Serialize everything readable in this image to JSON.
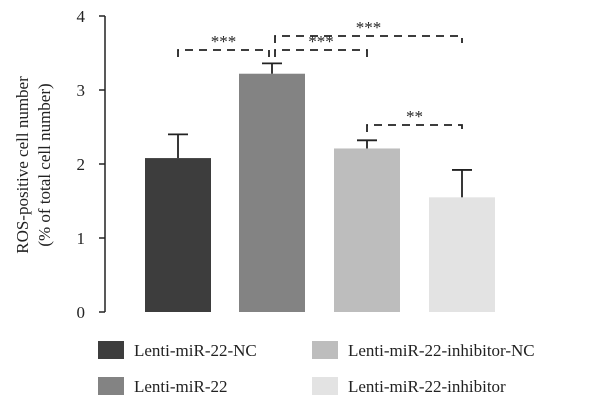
{
  "chart_data": {
    "type": "bar",
    "categories": [
      "Lenti-miR-22-NC",
      "Lenti-miR-22",
      "Lenti-miR-22-inhibitor-NC",
      "Lenti-miR-22-inhibitor"
    ],
    "values": [
      2.08,
      3.22,
      2.21,
      1.55
    ],
    "errors": [
      0.32,
      0.14,
      0.11,
      0.37
    ],
    "colors": [
      "#3d3d3d",
      "#838383",
      "#bdbdbd",
      "#e3e3e3"
    ],
    "ylabel_line1": "ROS-positive cell number",
    "ylabel_line2": "(% of total cell number)",
    "ylim": [
      0,
      4
    ],
    "yticks": [
      "0",
      "1",
      "2",
      "3",
      "4"
    ],
    "grid": false,
    "legend_position": "bottom",
    "legend": [
      {
        "label": "Lenti-miR-22-NC",
        "color": "#3d3d3d"
      },
      {
        "label": "Lenti-miR-22-inhibitor-NC",
        "color": "#bdbdbd"
      },
      {
        "label": "Lenti-miR-22",
        "color": "#838383"
      },
      {
        "label": "Lenti-miR-22-inhibitor",
        "color": "#e3e3e3"
      }
    ],
    "significance": [
      {
        "from": 0,
        "to": 1,
        "label": "***"
      },
      {
        "from": 1,
        "to": 2,
        "label": "***"
      },
      {
        "from": 1,
        "to": 3,
        "label": "***"
      },
      {
        "from": 2,
        "to": 3,
        "label": "**"
      }
    ]
  }
}
